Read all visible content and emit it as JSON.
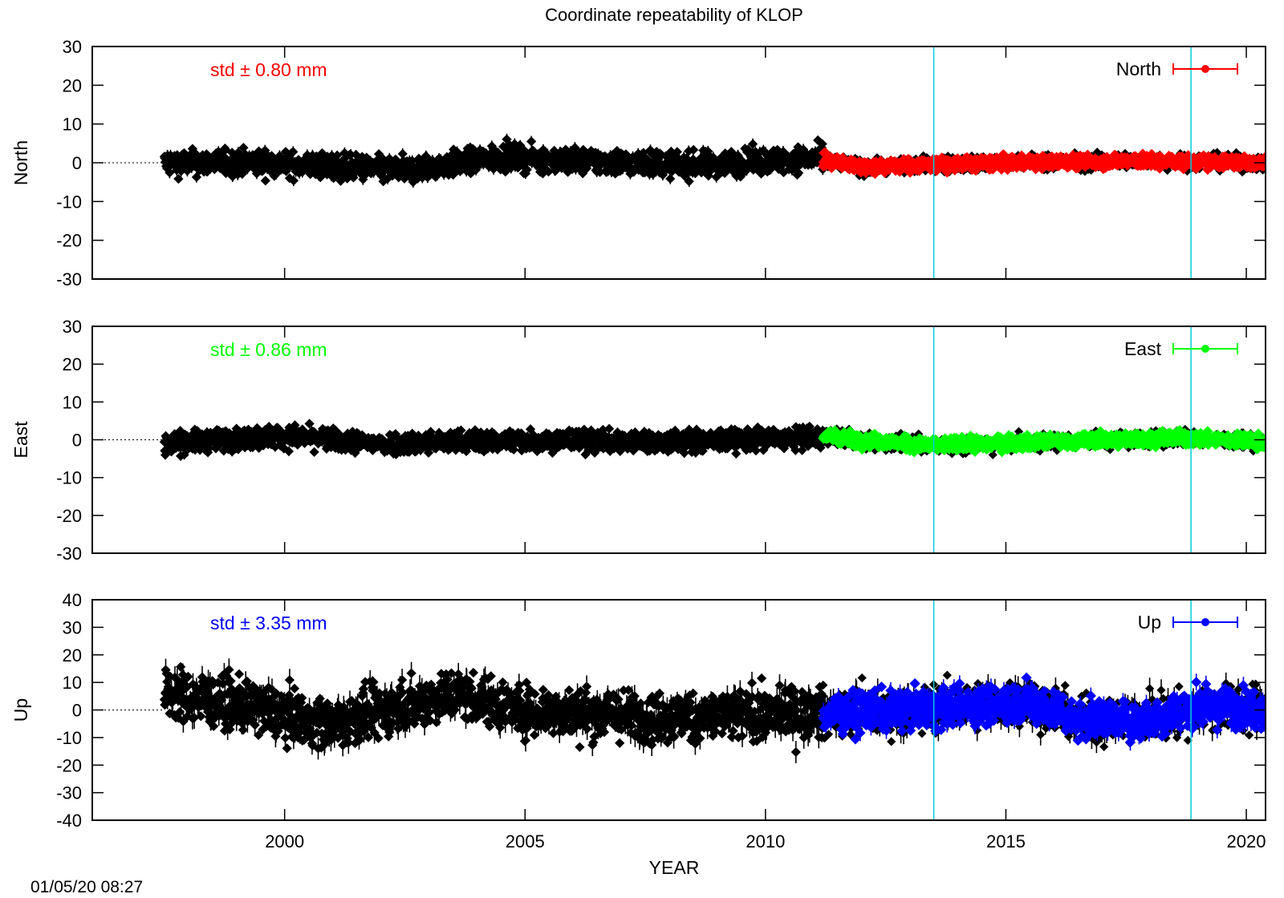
{
  "title": "Coordinate repeatability of KLOP",
  "timestamp": "01/05/20 08:27",
  "xlabel": "YEAR",
  "x_range": [
    1996,
    2020.4
  ],
  "x_ticks": [
    2000,
    2005,
    2010,
    2015,
    2020
  ],
  "vertical_markers": [
    2013.5,
    2018.85
  ],
  "colors": {
    "old": "#000000",
    "marker_line": "#00ccdd"
  },
  "panels": [
    {
      "name": "north",
      "ylabel": "North",
      "ylim": [
        -30,
        30
      ],
      "yticks": [
        30,
        20,
        10,
        0,
        -10,
        -20,
        -30
      ],
      "std_label": "std ± 0.80 mm",
      "legend": "North",
      "color": "#ff0000",
      "old_span": [
        1997.5,
        2011.2
      ],
      "new_span": [
        2011.2,
        2020.4
      ],
      "old_noise": 1.6,
      "new_noise": 0.8,
      "old_trend": [
        [
          1997.5,
          0
        ],
        [
          1999.5,
          0
        ],
        [
          2002.5,
          -2
        ],
        [
          2004.5,
          1.5
        ],
        [
          2006,
          0.5
        ],
        [
          2008.5,
          -0.5
        ],
        [
          2011,
          1
        ]
      ],
      "new_trend": [
        [
          2011.2,
          0.5
        ],
        [
          2012,
          -1
        ],
        [
          2015,
          0
        ],
        [
          2017.5,
          0.5
        ],
        [
          2020.4,
          0
        ]
      ]
    },
    {
      "name": "east",
      "ylabel": "East",
      "ylim": [
        -30,
        30
      ],
      "yticks": [
        30,
        20,
        10,
        0,
        -10,
        -20,
        -30
      ],
      "std_label": "std ± 0.86 mm",
      "legend": "East",
      "color": "#00ff00",
      "old_span": [
        1997.5,
        2011.2
      ],
      "new_span": [
        2011.2,
        2020.4
      ],
      "old_noise": 1.4,
      "new_noise": 0.86,
      "old_trend": [
        [
          1997.5,
          -1
        ],
        [
          2000,
          1
        ],
        [
          2002,
          -1
        ],
        [
          2005,
          0
        ],
        [
          2008,
          -0.5
        ],
        [
          2011,
          0.5
        ]
      ],
      "new_trend": [
        [
          2011.2,
          1
        ],
        [
          2013.3,
          -1.5
        ],
        [
          2016,
          -0.5
        ],
        [
          2018.5,
          0.5
        ],
        [
          2020.4,
          -0.5
        ]
      ]
    },
    {
      "name": "up",
      "ylabel": "Up",
      "ylim": [
        -40,
        40
      ],
      "yticks": [
        40,
        30,
        20,
        10,
        0,
        -10,
        -20,
        -30,
        -40
      ],
      "std_label": "std ± 3.35 mm",
      "legend": "Up",
      "color": "#0000ff",
      "old_span": [
        1997.5,
        2011.2
      ],
      "new_span": [
        2011.2,
        2020.4
      ],
      "old_noise": 4.5,
      "new_noise": 3.35,
      "old_trend": [
        [
          1997.5,
          6
        ],
        [
          1999,
          2
        ],
        [
          2001,
          -5
        ],
        [
          2003.5,
          6
        ],
        [
          2005,
          0
        ],
        [
          2008,
          -3
        ],
        [
          2011,
          -1
        ]
      ],
      "new_trend": [
        [
          2011.2,
          -1
        ],
        [
          2013,
          0
        ],
        [
          2015.5,
          3
        ],
        [
          2016.5,
          -3
        ],
        [
          2017.8,
          -4
        ],
        [
          2018.8,
          1
        ],
        [
          2020.4,
          1
        ]
      ]
    }
  ]
}
